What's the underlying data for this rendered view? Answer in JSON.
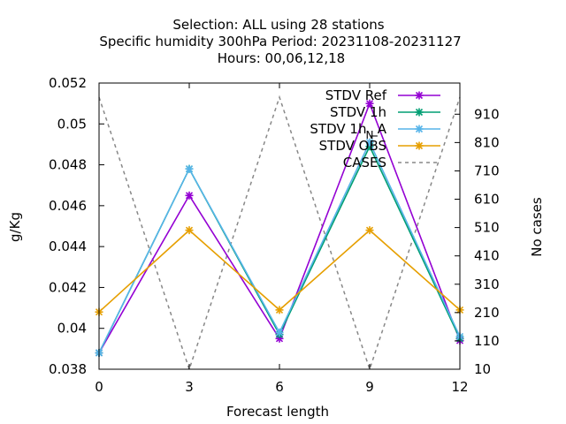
{
  "chart_data": {
    "type": "line",
    "title_lines": [
      "Selection: ALL using    28 stations",
      "Specific humidity 300hPa   Period: 20231108-20231127",
      "Hours:  00,06,12,18"
    ],
    "xlabel": "Forecast length",
    "ylabel": "g/Kg",
    "y2label": "No cases",
    "x": [
      0,
      3,
      6,
      9,
      12
    ],
    "xlim": [
      0,
      12
    ],
    "ylim": [
      0.038,
      0.052
    ],
    "y2lim": [
      10,
      1020
    ],
    "x_ticks": [
      "0",
      "3",
      "6",
      "9",
      "12"
    ],
    "y_ticks": [
      "0.038",
      "0.04",
      "0.042",
      "0.044",
      "0.046",
      "0.048",
      "0.05",
      "0.052"
    ],
    "y2_ticks": [
      "10",
      "110",
      "210",
      "310",
      "410",
      "510",
      "610",
      "710",
      "810",
      "910"
    ],
    "legend_position": "top-right",
    "series": [
      {
        "name": "STDV Ref",
        "color": "#9400d3",
        "values": [
          0.0388,
          0.0465,
          0.0395,
          0.051,
          0.0394
        ]
      },
      {
        "name": "STDV 1h",
        "color": "#009e73",
        "values": [
          0.0388,
          0.0478,
          0.0397,
          0.0489,
          0.0395
        ]
      },
      {
        "name": "STDV 1h _A",
        "color": "#56b4e9",
        "values": [
          0.0388,
          0.0478,
          0.0398,
          0.0491,
          0.0396
        ]
      },
      {
        "name": "STDV OBS",
        "color": "#e69f00",
        "values": [
          0.0408,
          0.0448,
          0.0409,
          0.0448,
          0.0409
        ]
      },
      {
        "name": "CASES",
        "color": "#888888",
        "axis": "y2",
        "dashed": true,
        "values": [
          970,
          10,
          970,
          10,
          970
        ]
      }
    ],
    "annotations": [
      "N"
    ]
  }
}
